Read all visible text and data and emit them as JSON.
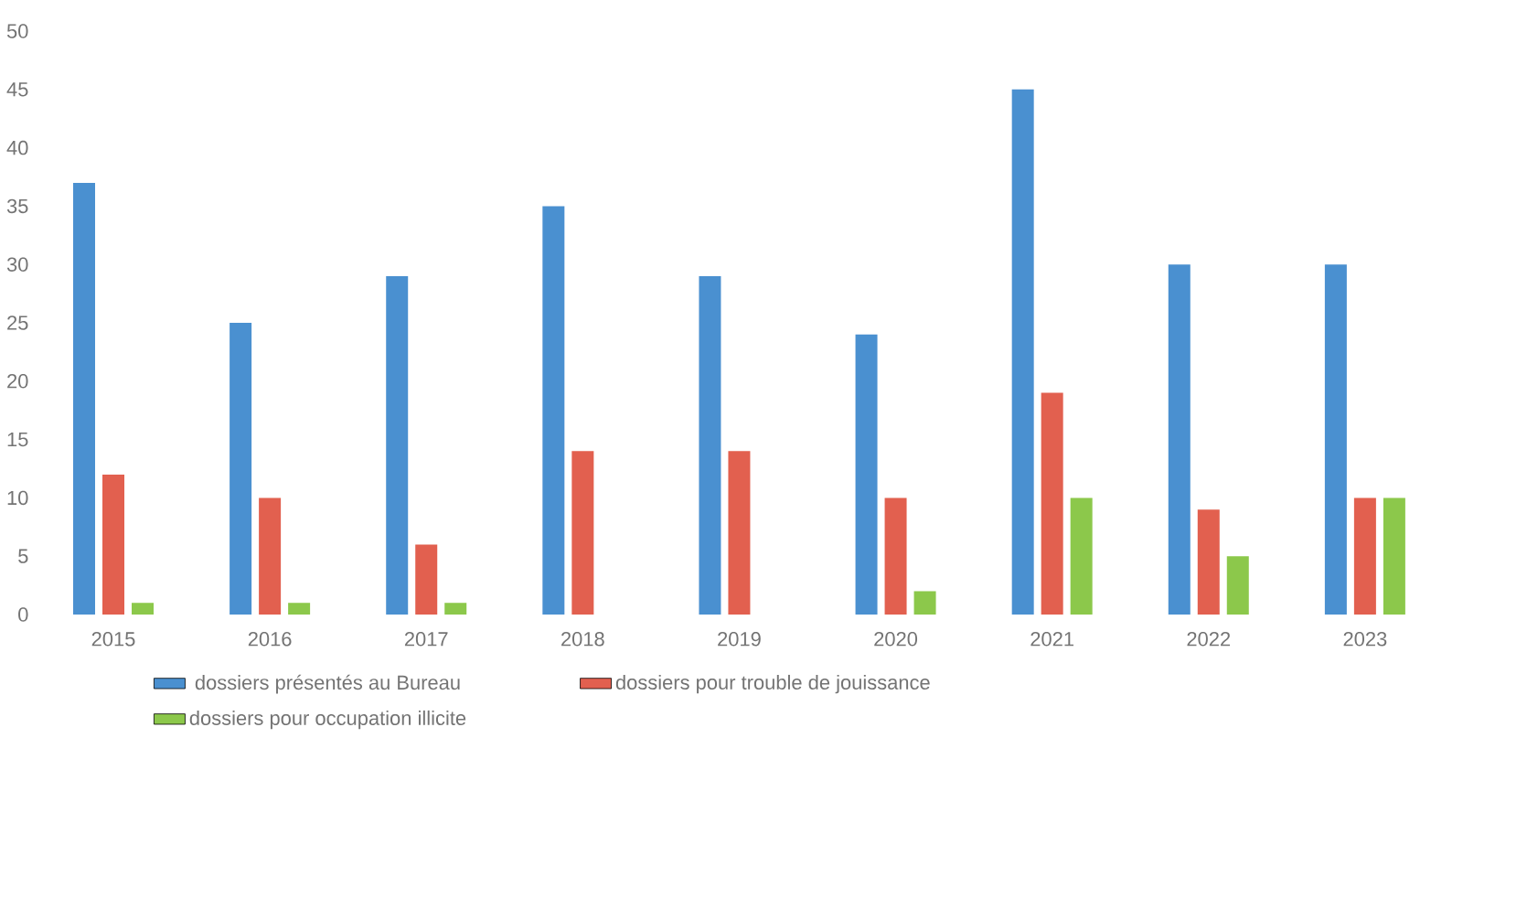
{
  "chart_data": {
    "type": "bar",
    "categories": [
      "2015",
      "2016",
      "2017",
      "2018",
      "2019",
      "2020",
      "2021",
      "2022",
      "2023"
    ],
    "series": [
      {
        "name": "dossiers présentés au Bureau",
        "color": "#4a90d0",
        "values": [
          37,
          25,
          29,
          35,
          29,
          24,
          45,
          30,
          30
        ]
      },
      {
        "name": "dossiers pour trouble de jouissance",
        "color": "#e2604f",
        "values": [
          12,
          10,
          6,
          14,
          14,
          10,
          19,
          9,
          10
        ]
      },
      {
        "name": "dossiers pour occupation illicite",
        "color": "#8cc84b",
        "values": [
          1,
          1,
          1,
          0,
          0,
          2,
          10,
          5,
          10
        ]
      }
    ],
    "ylim": [
      0,
      50
    ],
    "yticks": [
      0,
      5,
      10,
      15,
      20,
      25,
      30,
      35,
      40,
      45,
      50
    ],
    "grid": false,
    "legend": "bottom"
  }
}
